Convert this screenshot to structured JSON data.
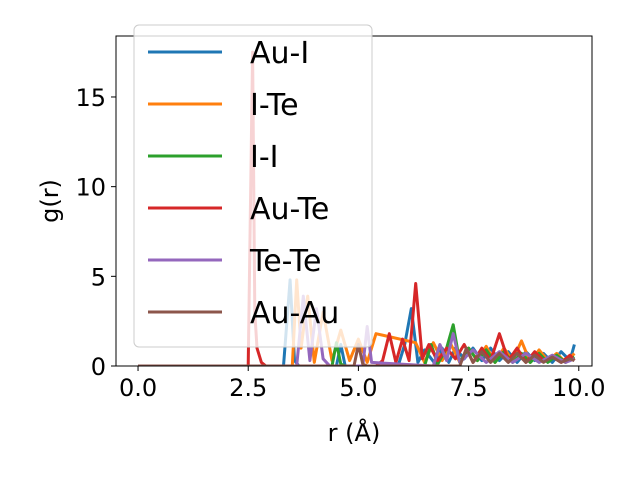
{
  "chart_data": {
    "type": "line",
    "xlabel": "r (Å)",
    "ylabel": "g(r)",
    "xlim": [
      -0.5,
      10.3
    ],
    "ylim": [
      0,
      18.4
    ],
    "xticks": [
      0.0,
      2.5,
      5.0,
      7.5,
      10.0
    ],
    "xtick_labels": [
      "0.0",
      "2.5",
      "5.0",
      "7.5",
      "10.0"
    ],
    "yticks": [
      0,
      5,
      10,
      15
    ],
    "ytick_labels": [
      "0",
      "5",
      "10",
      "15"
    ],
    "grid": false,
    "legend_position": "upper-left",
    "series": [
      {
        "name": "Au-I",
        "color": "#1f77b4",
        "x": [
          0.0,
          3.3,
          3.45,
          3.55,
          3.65,
          4.5,
          4.6,
          4.7,
          5.9,
          6.05,
          6.2,
          6.35,
          6.5,
          6.75,
          6.9,
          7.05,
          7.2,
          7.4,
          7.6,
          7.8,
          8.0,
          8.2,
          8.4,
          8.6,
          8.8,
          9.0,
          9.2,
          9.4,
          9.6,
          9.8,
          9.9
        ],
        "y": [
          0,
          0,
          4.8,
          0.3,
          0,
          0,
          1.2,
          0,
          0,
          1.2,
          3.2,
          0.2,
          0.9,
          0.1,
          1.0,
          0.2,
          1.0,
          0.4,
          1.0,
          0.3,
          1.0,
          0.3,
          0.8,
          0.2,
          0.8,
          0.3,
          0.7,
          0.2,
          0.8,
          0.3,
          1.2
        ]
      },
      {
        "name": "I-Te",
        "color": "#ff7f0e",
        "x": [
          0.0,
          3.5,
          3.6,
          3.7,
          3.85,
          4.0,
          4.2,
          4.4,
          4.6,
          4.8,
          5.0,
          5.2,
          5.4,
          6.3,
          6.5,
          6.7,
          6.9,
          7.1,
          7.3,
          7.5,
          7.7,
          7.9,
          8.1,
          8.3,
          8.5,
          8.7,
          8.9,
          9.1,
          9.3,
          9.5,
          9.7,
          9.9
        ],
        "y": [
          0,
          0,
          4.8,
          1.0,
          3.9,
          0.2,
          3.0,
          0.3,
          2.0,
          0.3,
          1.5,
          0.2,
          1.8,
          1.3,
          0.2,
          1.3,
          0.3,
          1.2,
          0.2,
          1.0,
          0.3,
          1.1,
          0.2,
          1.0,
          0.3,
          1.4,
          0.2,
          0.9,
          0.3,
          0.7,
          0.2,
          0.7
        ]
      },
      {
        "name": "I-I",
        "color": "#2ca02c",
        "x": [
          0.0,
          4.4,
          4.5,
          4.6,
          4.7,
          6.5,
          6.65,
          6.8,
          7.0,
          7.15,
          7.3,
          7.5,
          7.7,
          7.9,
          8.1,
          8.3,
          8.5,
          8.7,
          8.9,
          9.1,
          9.3,
          9.5,
          9.7,
          9.9
        ],
        "y": [
          0,
          0,
          1.3,
          0.1,
          0,
          0,
          1.2,
          0.1,
          1.0,
          2.3,
          0.2,
          1.0,
          0.3,
          0.9,
          0.2,
          0.8,
          0.2,
          0.7,
          0.2,
          0.7,
          0.2,
          0.6,
          0.2,
          0.5
        ]
      },
      {
        "name": "Au-Te",
        "color": "#d62728",
        "x": [
          0.0,
          2.5,
          2.6,
          2.65,
          2.7,
          2.8,
          2.9,
          5.4,
          5.55,
          5.7,
          5.85,
          6.0,
          6.15,
          6.3,
          6.45,
          6.6,
          6.8,
          7.0,
          7.2,
          7.4,
          7.6,
          7.8,
          8.0,
          8.2,
          8.4,
          8.6,
          8.8,
          9.0,
          9.2,
          9.4,
          9.6,
          9.8,
          9.9
        ],
        "y": [
          0,
          0,
          17.5,
          3.0,
          1.0,
          0.2,
          0,
          0,
          0.3,
          1.8,
          0.2,
          1.5,
          0.3,
          4.6,
          0.4,
          1.2,
          0.3,
          1.0,
          0.4,
          1.2,
          0.2,
          1.0,
          0.3,
          1.8,
          0.3,
          1.0,
          0.2,
          0.8,
          0.3,
          0.5,
          0.2,
          0.6,
          0.3
        ]
      },
      {
        "name": "Te-Te",
        "color": "#9467bd",
        "x": [
          0.0,
          3.6,
          3.75,
          3.9,
          4.05,
          4.2,
          4.35,
          5.1,
          5.2,
          5.3,
          6.7,
          6.85,
          7.0,
          7.15,
          7.3,
          7.6,
          7.9,
          8.2,
          8.5,
          8.8,
          9.1,
          9.4,
          9.7,
          9.9
        ],
        "y": [
          0,
          0,
          3.9,
          0.3,
          3.2,
          0.4,
          0,
          0,
          2.2,
          0.2,
          0,
          1.2,
          0.3,
          1.8,
          0.2,
          0.9,
          0.2,
          0.8,
          0.2,
          0.7,
          0.2,
          0.6,
          0.2,
          0.4
        ]
      },
      {
        "name": "Au-Au",
        "color": "#8c564b",
        "x": [
          0.0,
          4.9,
          5.0,
          5.1,
          5.2,
          7.3,
          7.45,
          7.6,
          7.8,
          8.0,
          8.2,
          8.4,
          8.6,
          8.8,
          9.0,
          9.2,
          9.4,
          9.6,
          9.8,
          9.9
        ],
        "y": [
          0,
          0,
          1.2,
          0.1,
          0,
          0,
          1.0,
          0.2,
          0.8,
          0.2,
          0.7,
          0.2,
          0.7,
          0.2,
          0.6,
          0.2,
          0.5,
          0.2,
          0.4,
          0.3
        ]
      }
    ]
  }
}
